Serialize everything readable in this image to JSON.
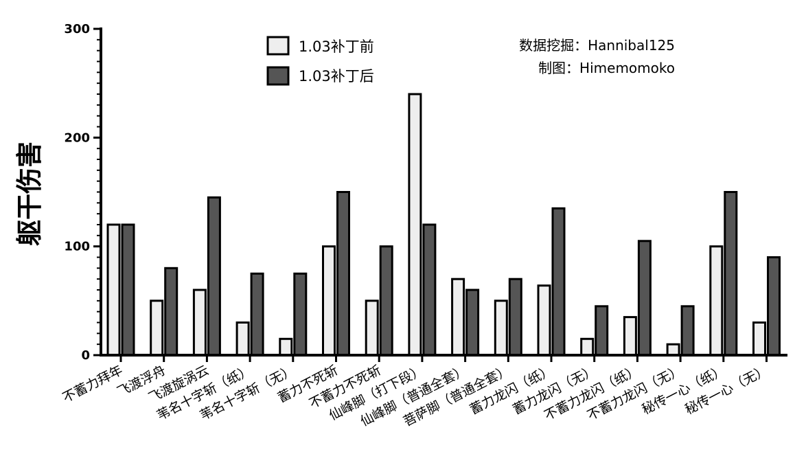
{
  "chart_data": {
    "type": "bar",
    "ylabel": "躯干伤害",
    "xlabel": "",
    "ylim": [
      0,
      300
    ],
    "yticks": [
      0,
      100,
      200,
      300
    ],
    "grid": false,
    "legend_position": "top-center",
    "categories": [
      "不蓄力拜年",
      "飞渡浮舟",
      "飞渡旋涡云",
      "苇名十字斩（纸）",
      "苇名十字斩（无）",
      "蓄力不死斩",
      "不蓄力不死斩",
      "仙峰脚（打下段）",
      "仙峰脚（普通全套）",
      "菩萨脚（普通全套）",
      "蓄力龙闪（纸）",
      "蓄力龙闪（无）",
      "不蓄力龙闪（纸）",
      "不蓄力龙闪（无）",
      "秘传一心（纸）",
      "秘传一心（无）"
    ],
    "series": [
      {
        "name": "1.03补丁前",
        "color": "#eeeeee",
        "values": [
          120,
          50,
          60,
          30,
          15,
          100,
          50,
          240,
          70,
          50,
          64,
          15,
          35,
          10,
          100,
          30
        ]
      },
      {
        "name": "1.03补丁后",
        "color": "#555555",
        "values": [
          120,
          80,
          145,
          75,
          75,
          150,
          100,
          120,
          60,
          70,
          135,
          45,
          105,
          45,
          150,
          90
        ]
      }
    ],
    "annotations": [
      "数据挖掘：Hannibal125",
      "制图：Himemomoko"
    ]
  }
}
